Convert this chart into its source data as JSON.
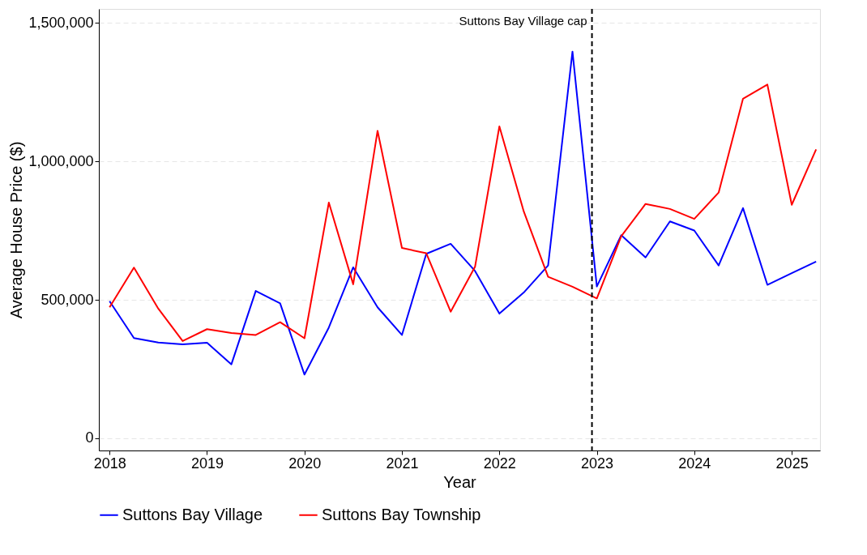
{
  "chart_data": {
    "type": "line",
    "xlabel": "Year",
    "ylabel": "Average House Price ($)",
    "x": [
      2018,
      2018.25,
      2018.5,
      2018.75,
      2019,
      2019.25,
      2019.5,
      2019.75,
      2020,
      2020.25,
      2020.5,
      2020.75,
      2021,
      2021.25,
      2021.5,
      2021.75,
      2022,
      2022.25,
      2022.5,
      2022.75,
      2023,
      2023.25,
      2023.5,
      2023.75,
      2024,
      2024.25,
      2024.5,
      2024.75,
      2025,
      2025.25
    ],
    "series": [
      {
        "name": "Suttons Bay Village",
        "color": "#0000ff",
        "values": [
          495000,
          362000,
          346000,
          339000,
          345000,
          267000,
          532000,
          487000,
          230000,
          400000,
          617000,
          473000,
          373000,
          666000,
          702000,
          604000,
          450000,
          526000,
          624000,
          1396000,
          548000,
          733000,
          653000,
          783000,
          750000,
          624000,
          831000,
          554000,
          596000,
          638000
        ]
      },
      {
        "name": "Suttons Bay Township",
        "color": "#ff0000",
        "values": [
          473000,
          616000,
          468000,
          351000,
          394000,
          380000,
          373000,
          419000,
          361000,
          851000,
          556000,
          1110000,
          687000,
          668000,
          457000,
          619000,
          1126000,
          819000,
          583000,
          547000,
          505000,
          729000,
          846000,
          828000,
          792000,
          887000,
          1226000,
          1277000,
          843000,
          1043000
        ]
      }
    ],
    "xlim": [
      2017.89,
      2025.29
    ],
    "xticks": [
      2018,
      2019,
      2020,
      2021,
      2022,
      2023,
      2024,
      2025
    ],
    "ylim": [
      -44000,
      1550000
    ],
    "yticks": [
      {
        "value": 0,
        "label": "0"
      },
      {
        "value": 500000,
        "label": "500,000"
      },
      {
        "value": 1000000,
        "label": "1,000,000"
      },
      {
        "value": 1500000,
        "label": "1,500,000"
      }
    ],
    "ref_lines": [
      {
        "axis": "x",
        "value": 2022.95,
        "label": "Suttons Bay Village cap",
        "color": "#000000",
        "line_style": "dashed"
      }
    ],
    "grid": "y",
    "legend": "bottom",
    "line_style": "solid",
    "marker": "none"
  }
}
